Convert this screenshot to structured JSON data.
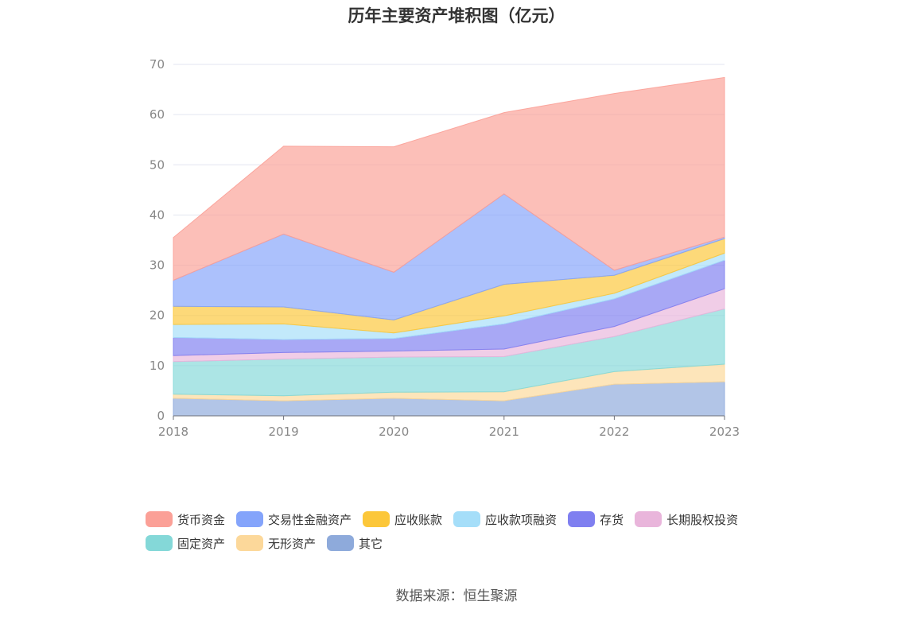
{
  "chart_data": {
    "type": "area",
    "stacked": true,
    "title": "历年主要资产堆积图（亿元）",
    "x": [
      "2018",
      "2019",
      "2020",
      "2021",
      "2022",
      "2023"
    ],
    "ylim": [
      0,
      70
    ],
    "yticks": [
      "0",
      "10",
      "20",
      "30",
      "40",
      "50",
      "60",
      "70"
    ],
    "grid": true,
    "legend_position": "bottom",
    "series": [
      {
        "name": "其它",
        "color": "#8eaadb",
        "values": [
          3.5,
          3.0,
          3.5,
          3.0,
          6.3,
          6.8
        ]
      },
      {
        "name": "无形资产",
        "color": "#fcd89a",
        "values": [
          0.8,
          1.0,
          1.2,
          1.8,
          2.5,
          3.5
        ]
      },
      {
        "name": "固定资产",
        "color": "#84d8d8",
        "values": [
          6.5,
          7.3,
          7.0,
          7.0,
          7.0,
          11.0
        ]
      },
      {
        "name": "长期股权投资",
        "color": "#e9b5db",
        "values": [
          1.2,
          1.3,
          1.2,
          1.5,
          2.0,
          4.0
        ]
      },
      {
        "name": "存货",
        "color": "#7f7ff0",
        "values": [
          3.6,
          2.6,
          2.5,
          5.0,
          5.5,
          5.7
        ]
      },
      {
        "name": "应收款项融资",
        "color": "#a5def9",
        "values": [
          2.6,
          3.1,
          1.1,
          1.6,
          1.1,
          1.4
        ]
      },
      {
        "name": "应收账款",
        "color": "#fcc73a",
        "values": [
          3.6,
          3.4,
          2.6,
          6.3,
          3.6,
          2.9
        ]
      },
      {
        "name": "交易性金融资产",
        "color": "#84a4fb",
        "values": [
          5.2,
          14.5,
          9.5,
          18.0,
          1.0,
          0.3
        ]
      },
      {
        "name": "货币资金",
        "color": "#fba097",
        "values": [
          8.5,
          17.5,
          25.0,
          16.2,
          35.2,
          31.8
        ]
      }
    ]
  },
  "legend_order": [
    "货币资金",
    "交易性金融资产",
    "应收账款",
    "应收款项融资",
    "存货",
    "长期股权投资",
    "固定资产",
    "无形资产",
    "其它"
  ],
  "source": "数据来源：恒生聚源"
}
